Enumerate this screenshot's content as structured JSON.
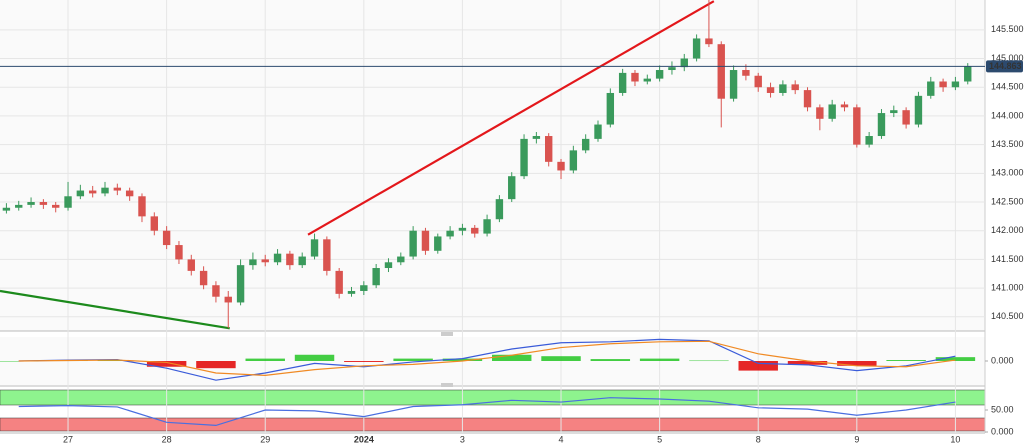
{
  "chart_data": [
    {
      "type": "candlestick",
      "xlim": [
        -0.69,
        9.3
      ],
      "ylim": [
        140.27,
        146.02
      ],
      "xticks": [
        {
          "value": 0,
          "label": "27"
        },
        {
          "value": 1,
          "label": "28"
        },
        {
          "value": 2,
          "label": "29"
        },
        {
          "value": 3,
          "label": "2024"
        },
        {
          "value": 4,
          "label": "3"
        },
        {
          "value": 5,
          "label": "4"
        },
        {
          "value": 6,
          "label": "5"
        },
        {
          "value": 7,
          "label": "8"
        },
        {
          "value": 8,
          "label": "9"
        },
        {
          "value": 9,
          "label": "10"
        }
      ],
      "yticks": [
        {
          "value": 140.5,
          "label": "140.500"
        },
        {
          "value": 141,
          "label": "141.000"
        },
        {
          "value": 141.5,
          "label": "141.500"
        },
        {
          "value": 142,
          "label": "142.000"
        },
        {
          "value": 142.5,
          "label": "142.500"
        },
        {
          "value": 143,
          "label": "143.000"
        },
        {
          "value": 143.5,
          "label": "143.500"
        },
        {
          "value": 144,
          "label": "144.000"
        },
        {
          "value": 144.5,
          "label": "144.500"
        },
        {
          "value": 145,
          "label": "145.000"
        },
        {
          "value": 145.5,
          "label": "145.500"
        }
      ],
      "grid": true,
      "up_color": "#3a9a5c",
      "down_color": "#d9534f",
      "x": [
        -0.625,
        -0.5,
        -0.375,
        -0.25,
        -0.125,
        0,
        0.125,
        0.25,
        0.375,
        0.5,
        0.625,
        0.75,
        0.875,
        1,
        1.125,
        1.25,
        1.375,
        1.5,
        1.625,
        1.75,
        1.875,
        2,
        2.125,
        2.25,
        2.375,
        2.5,
        2.625,
        2.75,
        2.875,
        3,
        3.125,
        3.25,
        3.375,
        3.5,
        3.625,
        3.75,
        3.875,
        4,
        4.125,
        4.25,
        4.375,
        4.5,
        4.625,
        4.75,
        4.875,
        5,
        5.125,
        5.25,
        5.375,
        5.5,
        5.625,
        5.75,
        5.875,
        6,
        6.125,
        6.25,
        6.375,
        6.5,
        6.625,
        6.75,
        6.875,
        7,
        7.125,
        7.25,
        7.375,
        7.5,
        7.625,
        7.75,
        7.875,
        8,
        8.125,
        8.25,
        8.375,
        8.5,
        8.625,
        8.75,
        8.875,
        9,
        9.125
      ],
      "open": [
        142.35,
        142.4,
        142.45,
        142.5,
        142.45,
        142.4,
        142.6,
        142.7,
        142.65,
        142.75,
        142.7,
        142.6,
        142.25,
        142,
        141.75,
        141.5,
        141.3,
        141.05,
        140.85,
        140.75,
        141.4,
        141.5,
        141.45,
        141.6,
        141.4,
        141.55,
        141.85,
        141.3,
        140.9,
        140.95,
        141.05,
        141.35,
        141.45,
        141.55,
        142,
        141.65,
        141.9,
        142,
        142.05,
        141.95,
        142.2,
        142.55,
        142.95,
        143.6,
        143.65,
        143.2,
        143.05,
        143.4,
        143.6,
        143.85,
        144.4,
        144.75,
        144.6,
        144.65,
        144.8,
        144.85,
        145,
        145.35,
        145.25,
        144.3,
        144.8,
        144.7,
        144.5,
        144.4,
        144.55,
        144.45,
        144.15,
        143.95,
        144.2,
        144.15,
        143.5,
        143.65,
        144.05,
        144.1,
        143.85,
        144.35,
        144.6,
        144.5,
        144.6
      ],
      "high": [
        142.48,
        142.52,
        142.58,
        142.55,
        142.5,
        142.85,
        142.8,
        142.78,
        142.85,
        142.82,
        142.75,
        142.65,
        142.32,
        142.08,
        141.82,
        141.58,
        141.38,
        141.12,
        140.95,
        141.5,
        141.62,
        141.58,
        141.68,
        141.65,
        141.62,
        141.95,
        141.9,
        141.35,
        141.02,
        141.12,
        141.42,
        141.52,
        141.62,
        142.08,
        142.05,
        141.95,
        142.08,
        142.12,
        142.1,
        142.28,
        142.62,
        143.02,
        143.68,
        143.72,
        143.7,
        143.25,
        143.48,
        143.68,
        143.92,
        144.48,
        144.82,
        144.8,
        144.72,
        144.88,
        144.95,
        145.08,
        145.42,
        146.02,
        145.3,
        144.88,
        144.9,
        144.75,
        144.58,
        144.62,
        144.62,
        144.5,
        144.2,
        144.28,
        144.25,
        144.2,
        143.72,
        144.12,
        144.18,
        144.15,
        144.42,
        144.68,
        144.65,
        144.68,
        144.92
      ],
      "low": [
        142.3,
        142.35,
        142.4,
        142.38,
        142.32,
        142.35,
        142.55,
        142.58,
        142.6,
        142.62,
        142.52,
        142.15,
        141.92,
        141.68,
        141.42,
        141.22,
        140.98,
        140.75,
        140.3,
        140.7,
        141.32,
        141.38,
        141.4,
        141.32,
        141.35,
        141.5,
        141.22,
        140.82,
        140.85,
        140.88,
        141,
        141.28,
        141.4,
        141.5,
        141.58,
        141.6,
        141.85,
        141.92,
        141.88,
        141.9,
        142.15,
        142.5,
        142.9,
        143.52,
        143.12,
        142.9,
        143,
        143.35,
        143.55,
        143.8,
        144.35,
        144.52,
        144.55,
        144.6,
        144.72,
        144.78,
        144.95,
        145.2,
        143.8,
        144.25,
        144.62,
        144.42,
        144.32,
        144.35,
        144.38,
        144.08,
        143.75,
        143.9,
        144.08,
        143.45,
        143.45,
        143.6,
        143.98,
        143.78,
        143.8,
        144.3,
        144.42,
        144.45,
        144.55
      ],
      "close": [
        142.4,
        142.45,
        142.5,
        142.45,
        142.4,
        142.6,
        142.7,
        142.65,
        142.75,
        142.7,
        142.6,
        142.25,
        142,
        141.75,
        141.5,
        141.3,
        141.05,
        140.85,
        140.75,
        141.4,
        141.5,
        141.45,
        141.6,
        141.4,
        141.55,
        141.85,
        141.3,
        140.9,
        140.95,
        141.05,
        141.35,
        141.45,
        141.55,
        142,
        141.65,
        141.9,
        142,
        142.05,
        141.95,
        142.2,
        142.55,
        142.95,
        143.6,
        143.65,
        143.2,
        143.05,
        143.4,
        143.6,
        143.85,
        144.4,
        144.75,
        144.6,
        144.65,
        144.8,
        144.85,
        145,
        145.35,
        145.25,
        144.3,
        144.8,
        144.7,
        144.5,
        144.4,
        144.55,
        144.45,
        144.15,
        143.95,
        144.2,
        144.15,
        143.5,
        143.65,
        144.05,
        144.1,
        143.85,
        144.35,
        144.6,
        144.5,
        144.6,
        144.863
      ],
      "last_price": 144.863,
      "last_price_color": "#2c4a6e",
      "trendlines": [
        {
          "color": "#e3171b",
          "x": [
            2.434,
            6.55
          ],
          "y": [
            141.93,
            146.0
          ]
        },
        {
          "color": "#1c8a1c",
          "x": [
            -0.69,
            1.64
          ],
          "y": [
            140.95,
            140.3
          ]
        }
      ]
    },
    {
      "type": "macd",
      "xlim": [
        -0.69,
        9.3
      ],
      "ylim": [
        -0.5,
        0.5
      ],
      "yticks": [
        {
          "value": 0,
          "label": "0.000"
        }
      ],
      "x": [
        -0.5,
        0,
        0.5,
        1,
        1.5,
        2,
        2.5,
        3,
        3.5,
        4,
        4.5,
        5,
        5.5,
        6,
        6.5,
        7,
        7.5,
        8,
        8.5,
        9
      ],
      "series": [
        {
          "color": "#3a5bd9",
          "values": [
            0,
            0.02,
            0.03,
            -0.15,
            -0.4,
            -0.25,
            -0.05,
            -0.12,
            -0.02,
            0.05,
            0.25,
            0.38,
            0.4,
            0.45,
            0.42,
            -0.05,
            -0.08,
            -0.2,
            -0.1,
            0.1
          ]
        },
        {
          "color": "#f08a24",
          "values": [
            0,
            0.01,
            0.02,
            -0.03,
            -0.25,
            -0.3,
            -0.18,
            -0.1,
            -0.07,
            0,
            0.12,
            0.28,
            0.36,
            0.4,
            0.41,
            0.15,
            0,
            -0.1,
            -0.12,
            0.02
          ]
        }
      ],
      "histogram": {
        "up_color": "#22c422",
        "down_color": "#e00000",
        "values": [
          0,
          0.01,
          0.01,
          -0.12,
          -0.15,
          0.05,
          0.13,
          -0.02,
          0.05,
          0.05,
          0.13,
          0.1,
          0.04,
          0.05,
          0.01,
          -0.2,
          -0.08,
          -0.1,
          0.02,
          0.08
        ]
      }
    },
    {
      "type": "oscillator",
      "xlim": [
        -0.69,
        9.3
      ],
      "ylim": [
        0,
        100
      ],
      "yticks": [
        {
          "value": 0,
          "label": "0.000"
        },
        {
          "value": 50,
          "label": "50.00"
        }
      ],
      "x": [
        -0.5,
        0,
        0.5,
        1,
        1.5,
        2,
        2.5,
        3,
        3.5,
        4,
        4.5,
        5,
        5.5,
        6,
        6.5,
        7,
        7.5,
        8,
        8.5,
        9
      ],
      "series": [
        {
          "color": "#4a6fe0",
          "values": [
            58,
            60,
            57,
            22,
            15,
            50,
            48,
            35,
            58,
            62,
            72,
            68,
            78,
            75,
            70,
            55,
            52,
            38,
            50,
            68
          ]
        }
      ]
    }
  ]
}
